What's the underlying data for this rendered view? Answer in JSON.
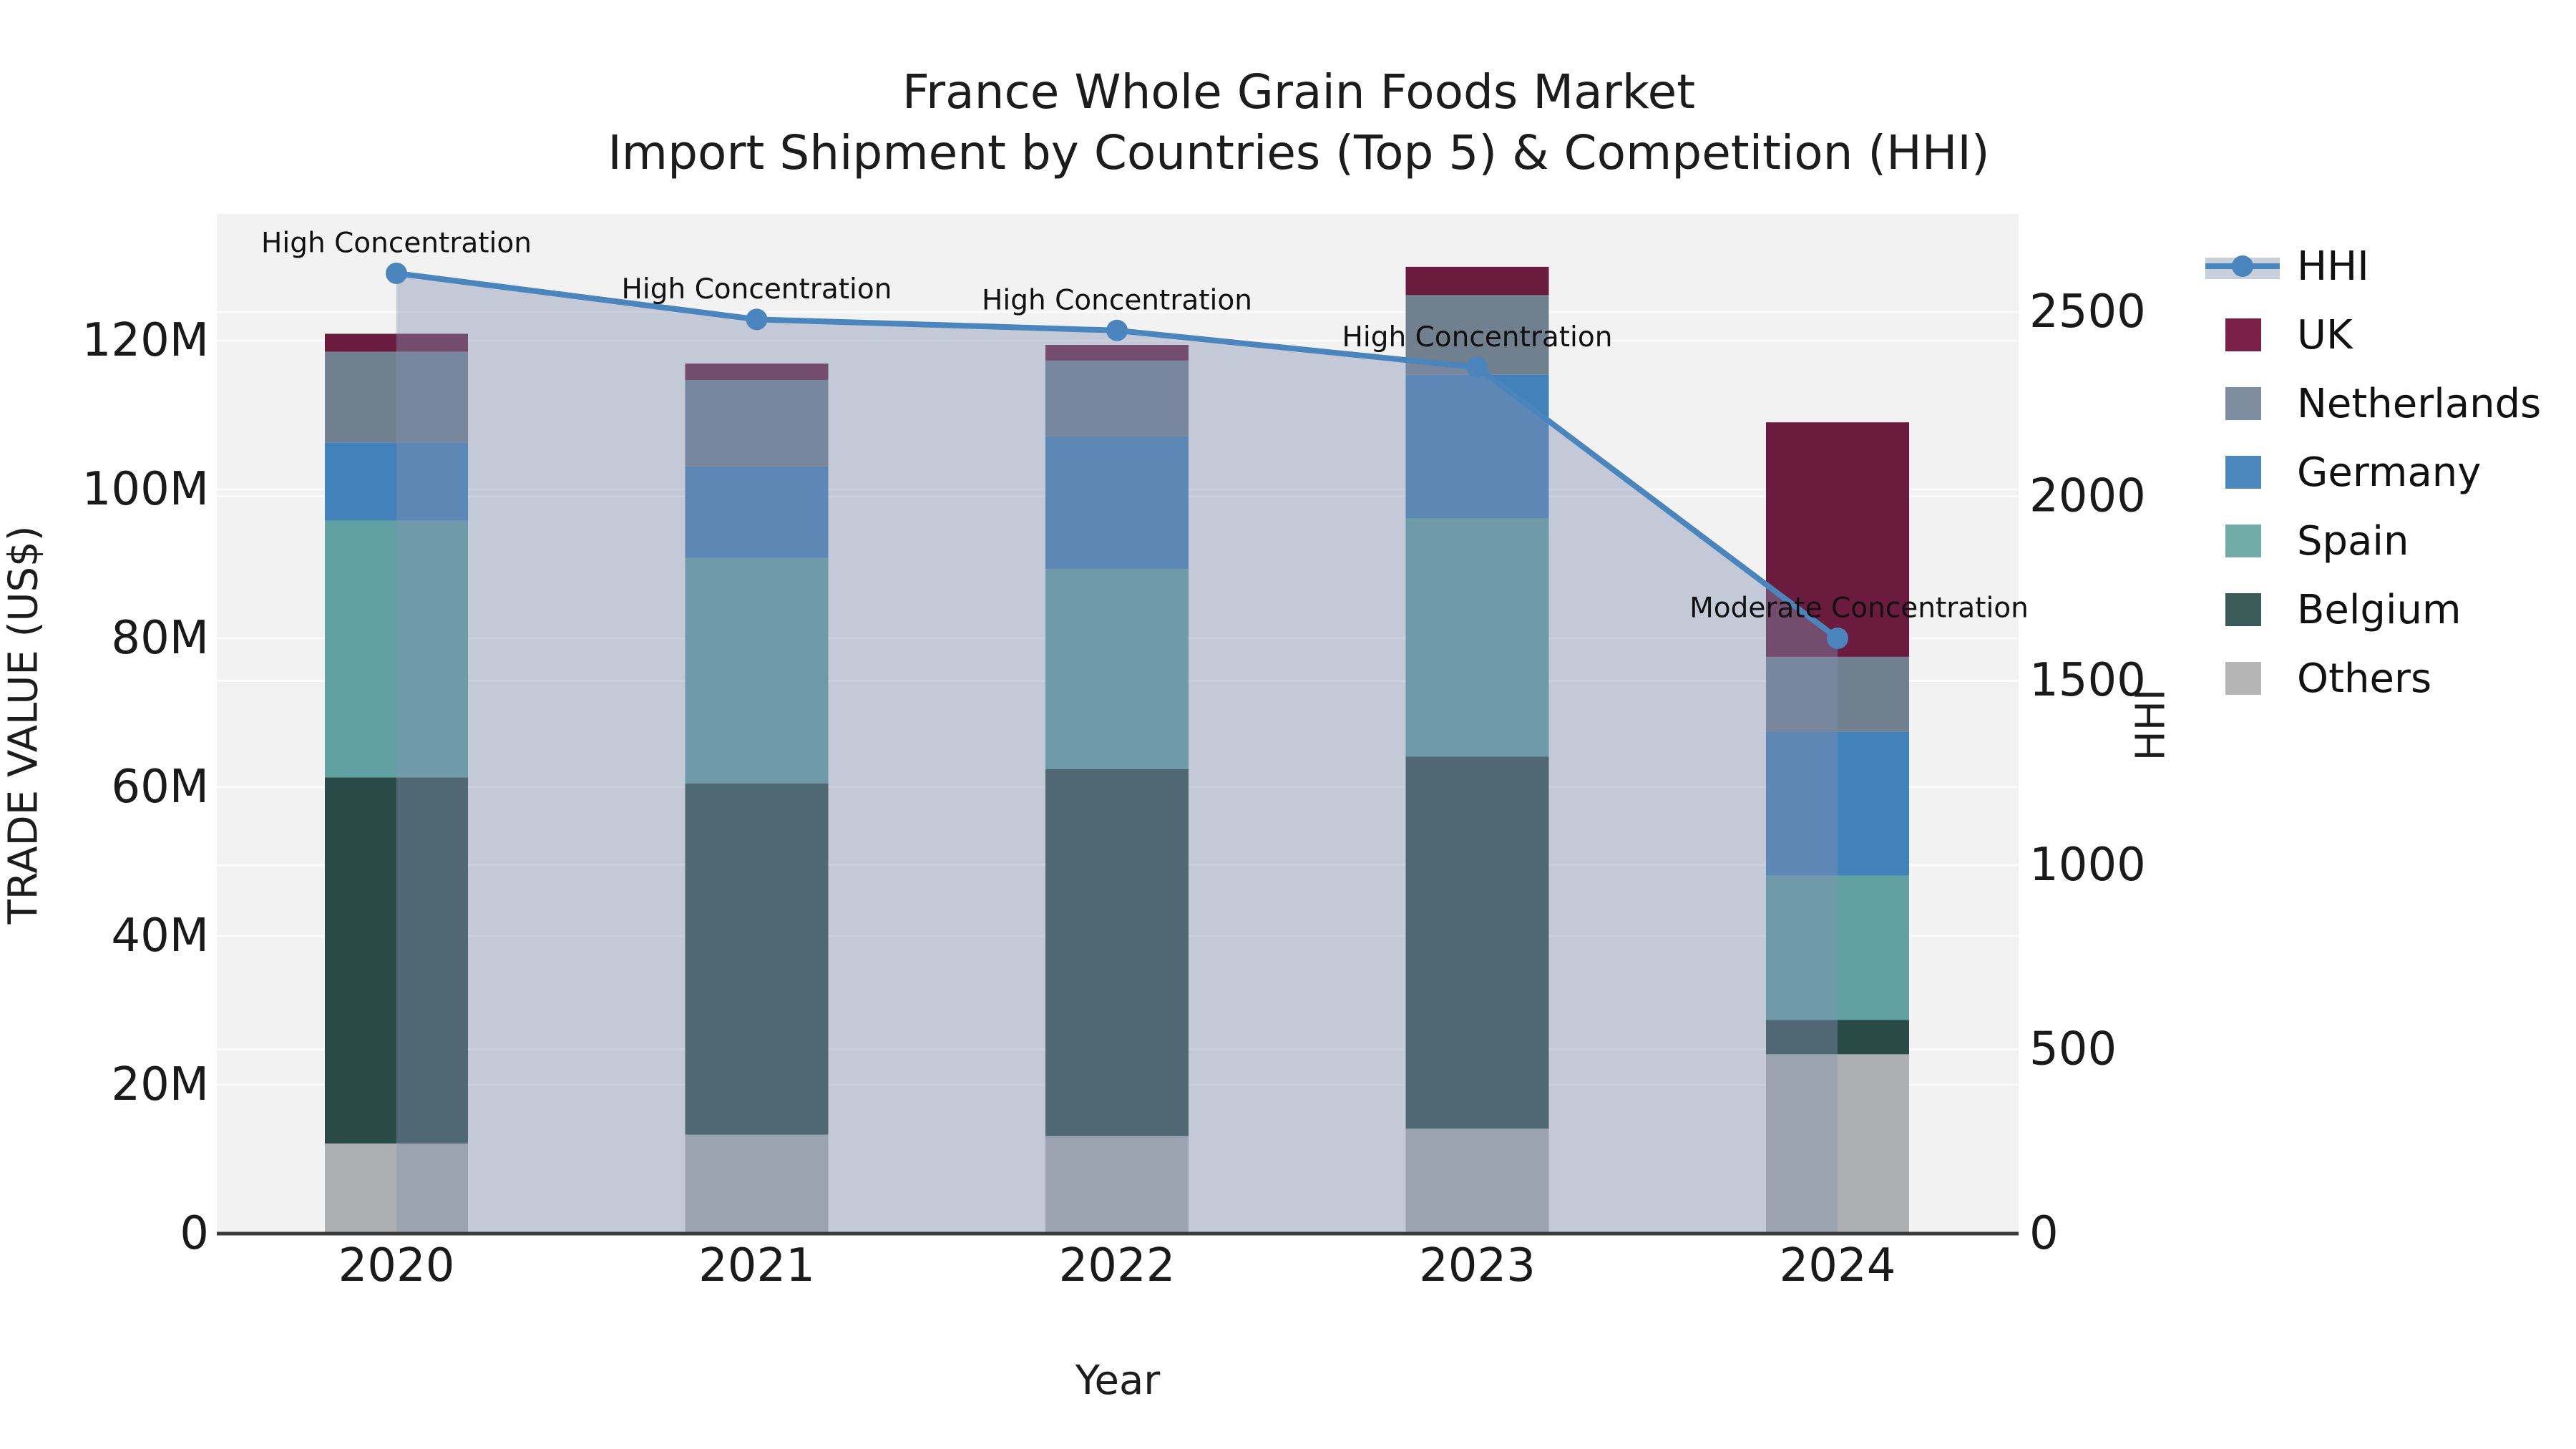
{
  "title": {
    "line1": "France Whole Grain Foods Market",
    "line2": "Import Shipment by Countries (Top 5) & Competition (HHI)"
  },
  "axes": {
    "x_label": "Year",
    "y_left_label": "TRADE VALUE (US$)",
    "y_right_label": "HHI",
    "x_ticks": [
      "2020",
      "2021",
      "2022",
      "2023",
      "2024"
    ],
    "y_left_ticks": [
      {
        "value": 0,
        "label": "0"
      },
      {
        "value": 20,
        "label": "20M"
      },
      {
        "value": 40,
        "label": "40M"
      },
      {
        "value": 60,
        "label": "60M"
      },
      {
        "value": 80,
        "label": "80M"
      },
      {
        "value": 100,
        "label": "100M"
      },
      {
        "value": 120,
        "label": "120M"
      }
    ],
    "y_right_ticks": [
      {
        "value": 0,
        "label": "0"
      },
      {
        "value": 500,
        "label": "500"
      },
      {
        "value": 1000,
        "label": "1000"
      },
      {
        "value": 1500,
        "label": "1500"
      },
      {
        "value": 2000,
        "label": "2000"
      },
      {
        "value": 2500,
        "label": "2500"
      }
    ]
  },
  "colors": {
    "plot_bg": "#f2f2f2",
    "grid": "#fbfbfb",
    "spine": "#3a3a3a",
    "text": "#1a1a1a",
    "hhi_line": "#4a85bd",
    "hhi_fill": "rgba(132,145,176,0.42)"
  },
  "legend": {
    "items": [
      {
        "id": "hhi",
        "label": "HHI",
        "type": "line",
        "color": "#4a85bd",
        "band_color": "#c9cfda"
      },
      {
        "id": "uk",
        "label": "UK",
        "type": "patch",
        "color": "#7b2048"
      },
      {
        "id": "netherlands",
        "label": "Netherlands",
        "type": "patch",
        "color": "#7d8c9e"
      },
      {
        "id": "germany",
        "label": "Germany",
        "type": "patch",
        "color": "#4c87be"
      },
      {
        "id": "spain",
        "label": "Spain",
        "type": "patch",
        "color": "#72aca8"
      },
      {
        "id": "belgium",
        "label": "Belgium",
        "type": "patch",
        "color": "#3a5c58"
      },
      {
        "id": "others",
        "label": "Others",
        "type": "patch",
        "color": "#b5b5b5"
      }
    ]
  },
  "chart_data": {
    "type": "bar",
    "stacked": true,
    "title": "France Whole Grain Foods Market — Import Shipment by Countries (Top 5) & Competition (HHI)",
    "xlabel": "Year",
    "ylabel_left": "TRADE VALUE (US$)",
    "ylabel_right": "HHI",
    "categories": [
      "2020",
      "2021",
      "2022",
      "2023",
      "2024"
    ],
    "unit": "million US$",
    "series": [
      {
        "name": "Others",
        "color": "#adafb0",
        "values": [
          12.1,
          13.3,
          13.1,
          14.1,
          24.1
        ]
      },
      {
        "name": "Belgium",
        "color": "#2a4a47",
        "values": [
          49.2,
          47.2,
          49.3,
          50.0,
          4.6
        ]
      },
      {
        "name": "Spain",
        "color": "#61a1a2",
        "values": [
          34.5,
          30.3,
          26.9,
          32.0,
          19.4
        ]
      },
      {
        "name": "Germany",
        "color": "#4281ba",
        "values": [
          10.5,
          12.3,
          17.8,
          19.3,
          19.3
        ]
      },
      {
        "name": "Netherlands",
        "color": "#71808f",
        "values": [
          12.2,
          11.6,
          10.2,
          10.7,
          10.1
        ]
      },
      {
        "name": "UK",
        "color": "#6a1b3e",
        "values": [
          2.4,
          2.2,
          2.1,
          3.8,
          31.5
        ]
      }
    ],
    "bar_totals": [
      120.9,
      116.9,
      119.4,
      129.9,
      109.0
    ],
    "line": {
      "name": "HHI",
      "values": [
        2605,
        2480,
        2450,
        2350,
        1615
      ],
      "color": "#4a85bd",
      "fill_color": "rgba(132,145,176,0.42)"
    },
    "annotations": [
      {
        "category": "2020",
        "text": "High Concentration",
        "dx": 0
      },
      {
        "category": "2021",
        "text": "High Concentration",
        "dx": 0
      },
      {
        "category": "2022",
        "text": "High Concentration",
        "dx": 0
      },
      {
        "category": "2023",
        "text": "High Concentration",
        "dx": 0
      },
      {
        "category": "2024",
        "text": "Moderate Concentration",
        "dx": 30
      }
    ],
    "ylim_left": [
      0,
      137
    ],
    "ylim_right": [
      0,
      2766
    ],
    "grid": true,
    "legend_position": "right"
  }
}
